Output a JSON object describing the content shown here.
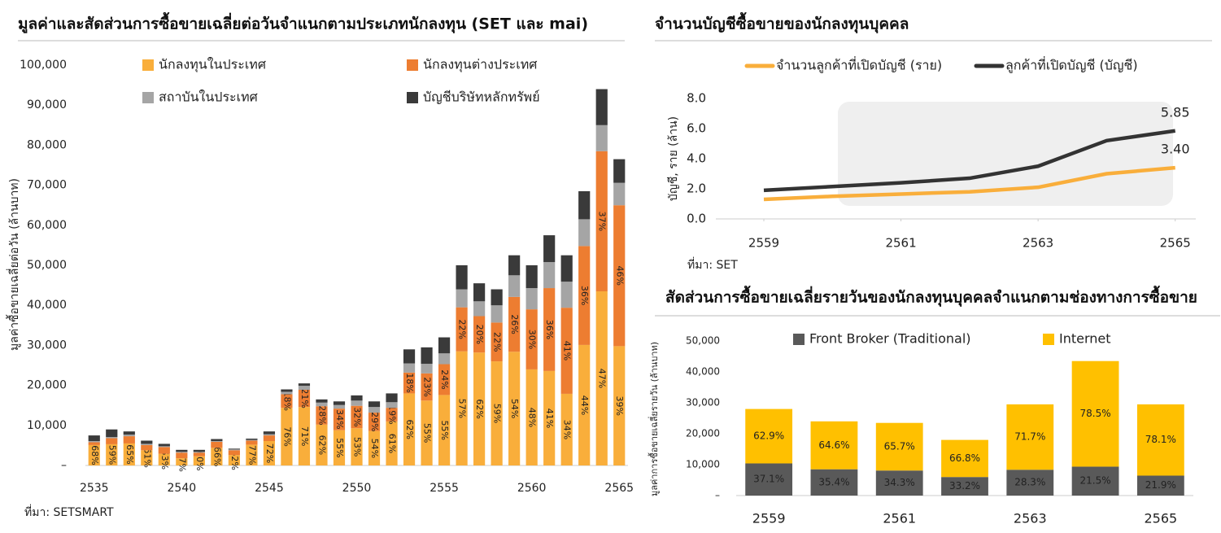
{
  "chart_data": [
    {
      "type": "stacked_bar",
      "title": "มูลค่าและสัดส่วนการซื้อขายเฉลี่ยต่อวันจำแนกตามประเภทนักลงทุน (SET และ mai)",
      "ylabel": "มูลค่าซื้อขายเฉลี่ยต่อวัน (ล้านบาท)",
      "source": "ที่มา: SETSMART",
      "categories": [
        "2535",
        null,
        null,
        null,
        null,
        "2540",
        null,
        null,
        null,
        null,
        "2545",
        null,
        null,
        null,
        null,
        "2550",
        null,
        null,
        null,
        null,
        "2555",
        null,
        null,
        null,
        null,
        "2560",
        null,
        null,
        null,
        null,
        "2565"
      ],
      "ylim": [
        0,
        100000
      ],
      "yticks": [
        {
          "value": 0,
          "label": "–"
        },
        {
          "value": 10000,
          "label": "10,000"
        },
        {
          "value": 20000,
          "label": "20,000"
        },
        {
          "value": 30000,
          "label": "30,000"
        },
        {
          "value": 40000,
          "label": "40,000"
        },
        {
          "value": 50000,
          "label": "50,000"
        },
        {
          "value": 60000,
          "label": "60,000"
        },
        {
          "value": 70000,
          "label": "70,000"
        },
        {
          "value": 80000,
          "label": "80,000"
        },
        {
          "value": 90000,
          "label": "90,000"
        },
        {
          "value": 100000,
          "label": "100,000"
        }
      ],
      "series": [
        {
          "name": "นักลงทุนในประเทศ",
          "color": "#f9ae3b",
          "values": [
            5100,
            5300,
            5500,
            3800,
            2900,
            1800,
            2300,
            4400,
            2600,
            5200,
            6100,
            14400,
            14600,
            10200,
            8800,
            9300,
            8600,
            11000,
            18000,
            16200,
            17600,
            28500,
            28200,
            26000,
            28400,
            24000,
            23600,
            17900,
            30100,
            43500,
            29800
          ],
          "share_labels": [
            "68%",
            "59%",
            "65%",
            "61%",
            "53%",
            "47%",
            "60%",
            "66%",
            "62%",
            "77%",
            "72%",
            "76%",
            "71%",
            "62%",
            "55%",
            "53%",
            "54%",
            "61%",
            "62%",
            "55%",
            "55%",
            "57%",
            "62%",
            "59%",
            "54%",
            "48%",
            "41%",
            "34%",
            "44%",
            "47%",
            "39%"
          ]
        },
        {
          "name": "นักลงทุนต่างประเทศ",
          "color": "#ed7d31",
          "values": [
            700,
            1500,
            1800,
            1300,
            1700,
            1400,
            900,
            1500,
            1200,
            1000,
            1400,
            3400,
            4300,
            4600,
            5400,
            5600,
            4600,
            3400,
            5200,
            6800,
            7700,
            11000,
            9100,
            9700,
            13700,
            15000,
            20700,
            21500,
            24700,
            35000,
            35200
          ],
          "share_labels": [
            null,
            null,
            null,
            null,
            null,
            null,
            null,
            null,
            null,
            null,
            null,
            "18%",
            "21%",
            "28%",
            "34%",
            "32%",
            "29%",
            "19%",
            "18%",
            "23%",
            "24%",
            "22%",
            "20%",
            "22%",
            "26%",
            "30%",
            "36%",
            "41%",
            "36%",
            "37%",
            "46%"
          ]
        },
        {
          "name": "สถาบันในประเทศ",
          "color": "#a5a5a5",
          "values": [
            300,
            300,
            400,
            300,
            200,
            200,
            200,
            200,
            200,
            200,
            300,
            600,
            1000,
            900,
            900,
            1300,
            1400,
            1400,
            2300,
            2400,
            2700,
            4500,
            3700,
            4300,
            5400,
            5300,
            6500,
            6500,
            6700,
            6500,
            5600
          ]
        },
        {
          "name": "บัญชีบริษัทหลักทรัพย์",
          "color": "#3a3a3a",
          "values": [
            1400,
            1900,
            800,
            800,
            600,
            500,
            500,
            500,
            200,
            300,
            700,
            600,
            600,
            800,
            900,
            1300,
            1400,
            2200,
            3500,
            4100,
            4000,
            6000,
            4500,
            4000,
            5000,
            5700,
            6700,
            6600,
            7000,
            9000,
            5900
          ]
        }
      ]
    },
    {
      "type": "line",
      "title": "จำนวนบัญชีซื้อขายของนักลงทุนบุคคล",
      "ylabel": "บัญชี, ราย (ล้าน)",
      "source": "ที่มา: SET",
      "x": [
        2559,
        2560,
        2561,
        2562,
        2563,
        2564,
        2565
      ],
      "xlim": [
        2558.3,
        2565.3
      ],
      "xticks": [
        2559,
        2561,
        2563,
        2565
      ],
      "ylim": [
        0,
        8
      ],
      "yticks": [
        {
          "value": 0,
          "label": "0.0"
        },
        {
          "value": 2,
          "label": "2.0"
        },
        {
          "value": 4,
          "label": "4.0"
        },
        {
          "value": 6,
          "label": "6.0"
        },
        {
          "value": 8,
          "label": "8.0"
        }
      ],
      "series": [
        {
          "name": "จำนวนลูกค้าที่เปิดบัญชี (ราย)",
          "color": "#f9ae3b",
          "values": [
            1.3,
            1.5,
            1.65,
            1.8,
            2.1,
            3.0,
            3.4
          ],
          "value_labels": [
            null,
            null,
            null,
            null,
            null,
            null,
            "3.40"
          ]
        },
        {
          "name": "ลูกค้าที่เปิดบัญชี (บัญชี)",
          "color": "#333333",
          "values": [
            1.9,
            2.15,
            2.4,
            2.7,
            3.5,
            5.2,
            5.85
          ],
          "value_labels": [
            null,
            null,
            null,
            null,
            null,
            null,
            "5.85"
          ]
        }
      ]
    },
    {
      "type": "stacked_bar",
      "title": "สัดส่วนการซื้อขายเฉลี่ยรายวันของนักลงทุนบุคคลจำแนกตามช่องทางการซื้อขาย",
      "ylabel": "มูลค่าการซื้อขายเฉลี่ยรายวัน (ล้านบาท)",
      "categories": [
        "2559",
        null,
        "2561",
        null,
        "2563",
        null,
        "2565"
      ],
      "ylim": [
        0,
        50000
      ],
      "yticks": [
        {
          "value": 0,
          "label": "–"
        },
        {
          "value": 10000,
          "label": "10,000"
        },
        {
          "value": 20000,
          "label": "20,000"
        },
        {
          "value": 30000,
          "label": "30,000"
        },
        {
          "value": 40000,
          "label": "40,000"
        },
        {
          "value": 50000,
          "label": "50,000"
        }
      ],
      "series": [
        {
          "name": "Front Broker (Traditional)",
          "color": "#595959",
          "values": [
            10400,
            8500,
            8100,
            6000,
            8350,
            9350,
            6450
          ],
          "share_labels": [
            "37.1%",
            "35.4%",
            "34.3%",
            "33.2%",
            "28.3%",
            "21.5%",
            "21.9%"
          ]
        },
        {
          "name": "Internet",
          "color": "#ffc000",
          "values": [
            17600,
            15500,
            15400,
            12000,
            21150,
            34150,
            23050
          ],
          "share_labels": [
            "62.9%",
            "64.6%",
            "65.7%",
            "66.8%",
            "71.7%",
            "78.5%",
            "78.1%"
          ]
        }
      ]
    }
  ]
}
